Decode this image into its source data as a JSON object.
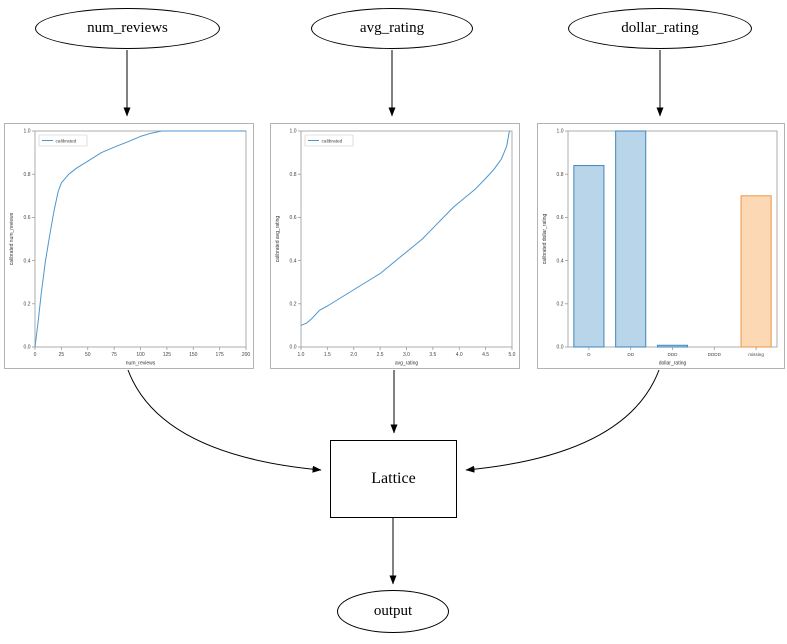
{
  "diagram": {
    "nodes": [
      {
        "id": "num_reviews",
        "label": "num_reviews",
        "shape": "ellipse"
      },
      {
        "id": "avg_rating",
        "label": "avg_rating",
        "shape": "ellipse"
      },
      {
        "id": "dollar_rating",
        "label": "dollar_rating",
        "shape": "ellipse"
      },
      {
        "id": "lattice",
        "label": "Lattice",
        "shape": "box"
      },
      {
        "id": "output",
        "label": "output",
        "shape": "ellipse"
      }
    ],
    "edges": [
      {
        "from": "num_reviews",
        "to": "calibrator-num_reviews"
      },
      {
        "from": "avg_rating",
        "to": "calibrator-avg_rating"
      },
      {
        "from": "dollar_rating",
        "to": "calibrator-dollar_rating"
      },
      {
        "from": "calibrator-num_reviews",
        "to": "lattice"
      },
      {
        "from": "calibrator-avg_rating",
        "to": "lattice"
      },
      {
        "from": "calibrator-dollar_rating",
        "to": "lattice"
      },
      {
        "from": "lattice",
        "to": "output"
      }
    ]
  },
  "colors": {
    "edge": "#000000",
    "line_blue": "#4c96cf",
    "bar_blue_fill": "#b9d5ea",
    "bar_blue_edge": "#3f87bd",
    "bar_orange_fill": "#fcd9b4",
    "bar_orange_edge": "#ef9545",
    "axis": "#9a9a9a",
    "tick_text": "#444444"
  },
  "chart_data": [
    {
      "type": "line",
      "title": "",
      "xlabel": "num_reviews",
      "ylabel": "calibrated num_reviews",
      "legend": [
        "calibrated"
      ],
      "legend_position": "upper left",
      "grid": false,
      "xlim": [
        0,
        200
      ],
      "ylim": [
        0.0,
        1.0
      ],
      "xticks": [
        "0",
        "25",
        "50",
        "75",
        "100",
        "125",
        "150",
        "175",
        "200"
      ],
      "yticks": [
        "0.0",
        "0.2",
        "0.4",
        "0.6",
        "0.8",
        "1.0"
      ],
      "series": [
        {
          "name": "calibrated",
          "color": "#4c96cf",
          "x": [
            0,
            3,
            6,
            10,
            14,
            18,
            22,
            25,
            32,
            40,
            50,
            63,
            75,
            88,
            100,
            110,
            120,
            125,
            150,
            175,
            200
          ],
          "y": [
            0.0,
            0.12,
            0.25,
            0.4,
            0.52,
            0.63,
            0.72,
            0.76,
            0.8,
            0.83,
            0.86,
            0.9,
            0.925,
            0.95,
            0.975,
            0.99,
            1.0,
            1.0,
            1.0,
            1.0,
            1.0
          ]
        }
      ]
    },
    {
      "type": "line",
      "title": "",
      "xlabel": "avg_rating",
      "ylabel": "calibrated avg_rating",
      "legend": [
        "calibrated"
      ],
      "legend_position": "upper left",
      "grid": false,
      "xlim": [
        1.0,
        5.0
      ],
      "ylim": [
        0.0,
        1.0
      ],
      "xticks": [
        "1.0",
        "1.5",
        "2.0",
        "2.5",
        "3.0",
        "3.5",
        "4.0",
        "4.5",
        "5.0"
      ],
      "yticks": [
        "0.0",
        "0.2",
        "0.4",
        "0.6",
        "0.8",
        "1.0"
      ],
      "series": [
        {
          "name": "calibrated",
          "color": "#4c96cf",
          "x": [
            1.0,
            1.1,
            1.2,
            1.35,
            1.5,
            1.7,
            1.9,
            2.1,
            2.3,
            2.5,
            2.7,
            2.9,
            3.1,
            3.3,
            3.5,
            3.7,
            3.9,
            4.1,
            4.3,
            4.5,
            4.65,
            4.8,
            4.9,
            4.95
          ],
          "y": [
            0.1,
            0.11,
            0.13,
            0.17,
            0.19,
            0.22,
            0.25,
            0.28,
            0.31,
            0.34,
            0.38,
            0.42,
            0.46,
            0.5,
            0.55,
            0.6,
            0.65,
            0.69,
            0.73,
            0.78,
            0.82,
            0.87,
            0.93,
            1.0
          ]
        }
      ]
    },
    {
      "type": "bar",
      "title": "",
      "xlabel": "dollar_rating",
      "ylabel": "calibrated dollar_rating",
      "grid": false,
      "ylim": [
        0.0,
        1.0
      ],
      "yticks": [
        "0.0",
        "0.2",
        "0.4",
        "0.6",
        "0.8",
        "1.0"
      ],
      "categories": [
        "D",
        "DD",
        "DDD",
        "DDDD",
        "missing"
      ],
      "values": [
        0.84,
        1.0,
        0.008,
        0.0,
        0.7
      ],
      "bars": [
        {
          "category": "D",
          "value": 0.84,
          "fill": "#b9d5ea",
          "edge": "#3f87bd"
        },
        {
          "category": "DD",
          "value": 1.0,
          "fill": "#b9d5ea",
          "edge": "#3f87bd"
        },
        {
          "category": "DDD",
          "value": 0.008,
          "fill": "#b9d5ea",
          "edge": "#3f87bd"
        },
        {
          "category": "DDDD",
          "value": 0.0,
          "fill": "#b9d5ea",
          "edge": "#3f87bd"
        },
        {
          "category": "missing",
          "value": 0.7,
          "fill": "#fcd9b4",
          "edge": "#ef9545"
        }
      ]
    }
  ]
}
